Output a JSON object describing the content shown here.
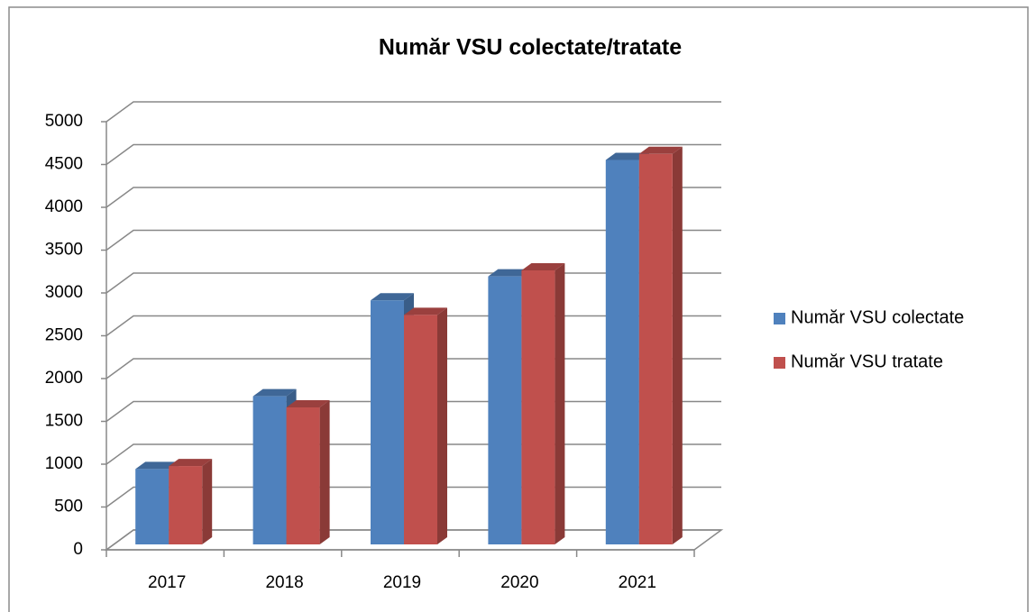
{
  "chart_data": {
    "type": "bar3d",
    "title": "Număr VSU colectate/tratate",
    "categories": [
      "2017",
      "2018",
      "2019",
      "2020",
      "2021"
    ],
    "series": [
      {
        "name": "Număr VSU colectate",
        "color": "#4f81bd",
        "values": [
          880,
          1730,
          2850,
          3130,
          4490
        ]
      },
      {
        "name": "Număr VSU tratate",
        "color": "#c0504d",
        "values": [
          915,
          1600,
          2680,
          3200,
          4560
        ]
      }
    ],
    "ylim": [
      0,
      5000
    ],
    "yticks": [
      0,
      500,
      1000,
      1500,
      2000,
      2500,
      3000,
      3500,
      4000,
      4500,
      5000
    ],
    "grid": true,
    "legend": "right"
  }
}
